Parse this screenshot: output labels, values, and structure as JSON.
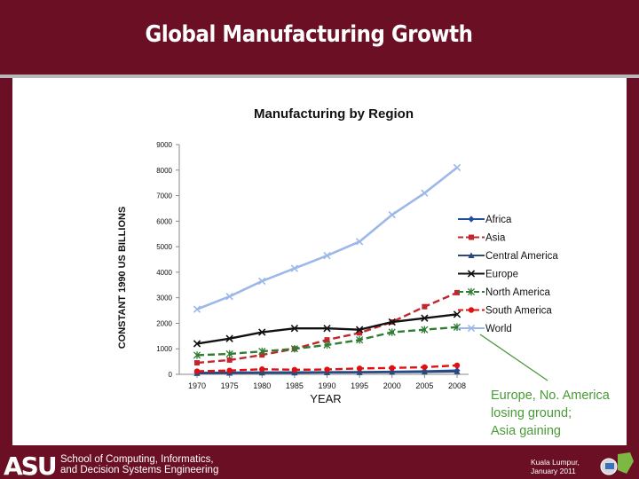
{
  "slide": {
    "title": "Global Manufacturing Growth",
    "footer_line1": "School of Computing, Informatics,",
    "footer_line2": "and Decision Systems Engineering",
    "footer_right_line1": "Kuala Lumpur,",
    "footer_right_line2": "January 2011",
    "logo_text": "ASU",
    "colors": {
      "maroon": "#6b0f24",
      "annotation": "#4a9a37"
    }
  },
  "annotation": {
    "line1": "Europe, No. America",
    "line2": "losing ground;",
    "line3": "Asia gaining"
  },
  "chart_data": {
    "type": "line",
    "title": "Manufacturing by Region",
    "xlabel": "YEAR",
    "ylabel": "CONSTANT 1990 US BILLIONS",
    "ylim": [
      0,
      9000
    ],
    "yticks": [
      0,
      1000,
      2000,
      3000,
      4000,
      5000,
      6000,
      7000,
      8000,
      9000
    ],
    "categories": [
      "1970",
      "1975",
      "1980",
      "1985",
      "1990",
      "1995",
      "2000",
      "2005",
      "2008"
    ],
    "legend_position": "right",
    "grid": false,
    "series": [
      {
        "name": "Africa",
        "color": "#1f4e9e",
        "marker": "diamond",
        "dash": false,
        "values": [
          60,
          70,
          75,
          80,
          85,
          90,
          100,
          120,
          150
        ]
      },
      {
        "name": "Asia",
        "color": "#c0282d",
        "marker": "square",
        "dash": true,
        "values": [
          450,
          560,
          760,
          1000,
          1350,
          1620,
          2050,
          2650,
          3200
        ]
      },
      {
        "name": "Central America",
        "color": "#2a4a7c",
        "marker": "triangle",
        "dash": false,
        "values": [
          40,
          50,
          60,
          60,
          70,
          75,
          85,
          95,
          110
        ]
      },
      {
        "name": "Europe",
        "color": "#111111",
        "marker": "x",
        "dash": false,
        "values": [
          1200,
          1400,
          1650,
          1800,
          1800,
          1750,
          2050,
          2200,
          2350
        ]
      },
      {
        "name": "North America",
        "color": "#2e7d32",
        "marker": "star",
        "dash": true,
        "values": [
          750,
          800,
          900,
          1000,
          1150,
          1350,
          1650,
          1750,
          1850
        ]
      },
      {
        "name": "South America",
        "color": "#e01010",
        "marker": "circle",
        "dash": true,
        "values": [
          120,
          150,
          200,
          180,
          190,
          230,
          250,
          280,
          350
        ]
      },
      {
        "name": "World",
        "color": "#9db8e8",
        "marker": "x",
        "dash": false,
        "values": [
          2550,
          3050,
          3650,
          4150,
          4650,
          5200,
          6250,
          7100,
          8100
        ]
      }
    ]
  }
}
